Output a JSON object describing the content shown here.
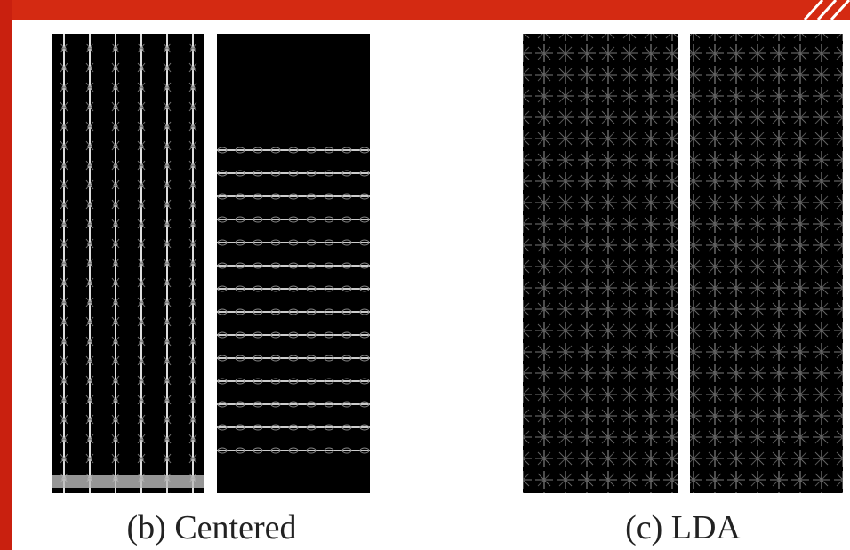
{
  "figure": {
    "captions": [
      "(b) Centered",
      "(c) LDA"
    ]
  }
}
